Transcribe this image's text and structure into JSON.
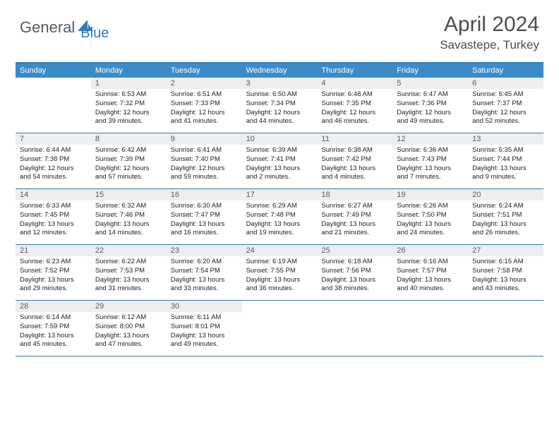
{
  "logo": {
    "part1": "General",
    "part2": "Blue"
  },
  "title": "April 2024",
  "location": "Savastepe, Turkey",
  "colors": {
    "accent": "#3b8bc9",
    "border": "#2f7bbf",
    "daynum_bg": "#eceeef",
    "text_muted": "#555b61"
  },
  "weekdays": [
    "Sunday",
    "Monday",
    "Tuesday",
    "Wednesday",
    "Thursday",
    "Friday",
    "Saturday"
  ],
  "weeks": [
    [
      {
        "n": "",
        "sr": "",
        "ss": "",
        "dl1": "",
        "dl2": ""
      },
      {
        "n": "1",
        "sr": "Sunrise: 6:53 AM",
        "ss": "Sunset: 7:32 PM",
        "dl1": "Daylight: 12 hours",
        "dl2": "and 39 minutes."
      },
      {
        "n": "2",
        "sr": "Sunrise: 6:51 AM",
        "ss": "Sunset: 7:33 PM",
        "dl1": "Daylight: 12 hours",
        "dl2": "and 41 minutes."
      },
      {
        "n": "3",
        "sr": "Sunrise: 6:50 AM",
        "ss": "Sunset: 7:34 PM",
        "dl1": "Daylight: 12 hours",
        "dl2": "and 44 minutes."
      },
      {
        "n": "4",
        "sr": "Sunrise: 6:48 AM",
        "ss": "Sunset: 7:35 PM",
        "dl1": "Daylight: 12 hours",
        "dl2": "and 46 minutes."
      },
      {
        "n": "5",
        "sr": "Sunrise: 6:47 AM",
        "ss": "Sunset: 7:36 PM",
        "dl1": "Daylight: 12 hours",
        "dl2": "and 49 minutes."
      },
      {
        "n": "6",
        "sr": "Sunrise: 6:45 AM",
        "ss": "Sunset: 7:37 PM",
        "dl1": "Daylight: 12 hours",
        "dl2": "and 52 minutes."
      }
    ],
    [
      {
        "n": "7",
        "sr": "Sunrise: 6:44 AM",
        "ss": "Sunset: 7:38 PM",
        "dl1": "Daylight: 12 hours",
        "dl2": "and 54 minutes."
      },
      {
        "n": "8",
        "sr": "Sunrise: 6:42 AM",
        "ss": "Sunset: 7:39 PM",
        "dl1": "Daylight: 12 hours",
        "dl2": "and 57 minutes."
      },
      {
        "n": "9",
        "sr": "Sunrise: 6:41 AM",
        "ss": "Sunset: 7:40 PM",
        "dl1": "Daylight: 12 hours",
        "dl2": "and 59 minutes."
      },
      {
        "n": "10",
        "sr": "Sunrise: 6:39 AM",
        "ss": "Sunset: 7:41 PM",
        "dl1": "Daylight: 13 hours",
        "dl2": "and 2 minutes."
      },
      {
        "n": "11",
        "sr": "Sunrise: 6:38 AM",
        "ss": "Sunset: 7:42 PM",
        "dl1": "Daylight: 13 hours",
        "dl2": "and 4 minutes."
      },
      {
        "n": "12",
        "sr": "Sunrise: 6:36 AM",
        "ss": "Sunset: 7:43 PM",
        "dl1": "Daylight: 13 hours",
        "dl2": "and 7 minutes."
      },
      {
        "n": "13",
        "sr": "Sunrise: 6:35 AM",
        "ss": "Sunset: 7:44 PM",
        "dl1": "Daylight: 13 hours",
        "dl2": "and 9 minutes."
      }
    ],
    [
      {
        "n": "14",
        "sr": "Sunrise: 6:33 AM",
        "ss": "Sunset: 7:45 PM",
        "dl1": "Daylight: 13 hours",
        "dl2": "and 12 minutes."
      },
      {
        "n": "15",
        "sr": "Sunrise: 6:32 AM",
        "ss": "Sunset: 7:46 PM",
        "dl1": "Daylight: 13 hours",
        "dl2": "and 14 minutes."
      },
      {
        "n": "16",
        "sr": "Sunrise: 6:30 AM",
        "ss": "Sunset: 7:47 PM",
        "dl1": "Daylight: 13 hours",
        "dl2": "and 16 minutes."
      },
      {
        "n": "17",
        "sr": "Sunrise: 6:29 AM",
        "ss": "Sunset: 7:48 PM",
        "dl1": "Daylight: 13 hours",
        "dl2": "and 19 minutes."
      },
      {
        "n": "18",
        "sr": "Sunrise: 6:27 AM",
        "ss": "Sunset: 7:49 PM",
        "dl1": "Daylight: 13 hours",
        "dl2": "and 21 minutes."
      },
      {
        "n": "19",
        "sr": "Sunrise: 6:26 AM",
        "ss": "Sunset: 7:50 PM",
        "dl1": "Daylight: 13 hours",
        "dl2": "and 24 minutes."
      },
      {
        "n": "20",
        "sr": "Sunrise: 6:24 AM",
        "ss": "Sunset: 7:51 PM",
        "dl1": "Daylight: 13 hours",
        "dl2": "and 26 minutes."
      }
    ],
    [
      {
        "n": "21",
        "sr": "Sunrise: 6:23 AM",
        "ss": "Sunset: 7:52 PM",
        "dl1": "Daylight: 13 hours",
        "dl2": "and 29 minutes."
      },
      {
        "n": "22",
        "sr": "Sunrise: 6:22 AM",
        "ss": "Sunset: 7:53 PM",
        "dl1": "Daylight: 13 hours",
        "dl2": "and 31 minutes."
      },
      {
        "n": "23",
        "sr": "Sunrise: 6:20 AM",
        "ss": "Sunset: 7:54 PM",
        "dl1": "Daylight: 13 hours",
        "dl2": "and 33 minutes."
      },
      {
        "n": "24",
        "sr": "Sunrise: 6:19 AM",
        "ss": "Sunset: 7:55 PM",
        "dl1": "Daylight: 13 hours",
        "dl2": "and 36 minutes."
      },
      {
        "n": "25",
        "sr": "Sunrise: 6:18 AM",
        "ss": "Sunset: 7:56 PM",
        "dl1": "Daylight: 13 hours",
        "dl2": "and 38 minutes."
      },
      {
        "n": "26",
        "sr": "Sunrise: 6:16 AM",
        "ss": "Sunset: 7:57 PM",
        "dl1": "Daylight: 13 hours",
        "dl2": "and 40 minutes."
      },
      {
        "n": "27",
        "sr": "Sunrise: 6:15 AM",
        "ss": "Sunset: 7:58 PM",
        "dl1": "Daylight: 13 hours",
        "dl2": "and 43 minutes."
      }
    ],
    [
      {
        "n": "28",
        "sr": "Sunrise: 6:14 AM",
        "ss": "Sunset: 7:59 PM",
        "dl1": "Daylight: 13 hours",
        "dl2": "and 45 minutes."
      },
      {
        "n": "29",
        "sr": "Sunrise: 6:12 AM",
        "ss": "Sunset: 8:00 PM",
        "dl1": "Daylight: 13 hours",
        "dl2": "and 47 minutes."
      },
      {
        "n": "30",
        "sr": "Sunrise: 6:11 AM",
        "ss": "Sunset: 8:01 PM",
        "dl1": "Daylight: 13 hours",
        "dl2": "and 49 minutes."
      },
      {
        "n": "",
        "sr": "",
        "ss": "",
        "dl1": "",
        "dl2": ""
      },
      {
        "n": "",
        "sr": "",
        "ss": "",
        "dl1": "",
        "dl2": ""
      },
      {
        "n": "",
        "sr": "",
        "ss": "",
        "dl1": "",
        "dl2": ""
      },
      {
        "n": "",
        "sr": "",
        "ss": "",
        "dl1": "",
        "dl2": ""
      }
    ]
  ]
}
